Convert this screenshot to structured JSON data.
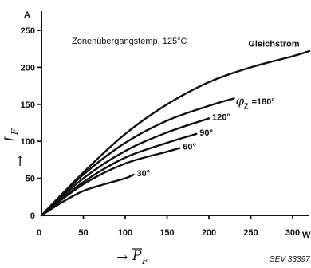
{
  "chart_data": {
    "type": "line",
    "annotation": "Zonenübergangstemp. 125°C",
    "reference": "SEV 33397",
    "xlabel": "P",
    "xlabel_sub": "F",
    "ylabel": "I",
    "ylabel_sub": "F",
    "y_unit": "A",
    "x_unit": "W",
    "x_ticks": [
      "0",
      "50",
      "100",
      "150",
      "200",
      "250",
      "300"
    ],
    "y_ticks": [
      "0",
      "50",
      "100",
      "150",
      "200",
      "250"
    ],
    "xlim": [
      0,
      320
    ],
    "ylim": [
      0,
      250
    ],
    "phi_symbol": "φ",
    "phi_sub": "Z",
    "series": [
      {
        "name": "Gleichstrom",
        "x": [
          0,
          50,
          100,
          150,
          200,
          250,
          300,
          320
        ],
        "y": [
          0,
          58,
          110,
          150,
          180,
          200,
          215,
          222
        ]
      },
      {
        "name": "=180°",
        "x": [
          0,
          50,
          100,
          150,
          200,
          230
        ],
        "y": [
          0,
          55,
          98,
          128,
          148,
          158
        ]
      },
      {
        "name": "120°",
        "x": [
          0,
          50,
          100,
          150,
          200
        ],
        "y": [
          0,
          50,
          87,
          112,
          131
        ]
      },
      {
        "name": "90°",
        "x": [
          0,
          50,
          100,
          150,
          185
        ],
        "y": [
          0,
          45,
          78,
          98,
          110
        ]
      },
      {
        "name": "60°",
        "x": [
          0,
          50,
          100,
          150,
          165
        ],
        "y": [
          0,
          42,
          70,
          86,
          91
        ]
      },
      {
        "name": "30°",
        "x": [
          0,
          25,
          50,
          75,
          100,
          110
        ],
        "y": [
          0,
          18,
          33,
          42,
          50,
          55
        ]
      }
    ]
  }
}
